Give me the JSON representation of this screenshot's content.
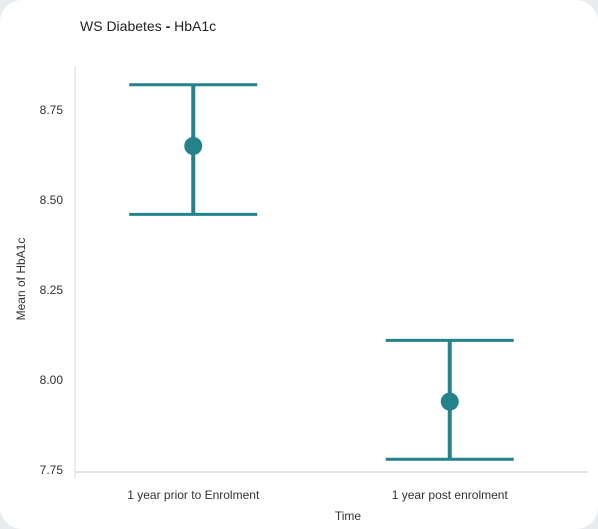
{
  "title": {
    "left": "WS Diabetes",
    "separator": "-",
    "right": "HbA1c"
  },
  "colors": {
    "series": "#24828a",
    "axis": "#d9dcdd",
    "text": "#333333"
  },
  "chart_data": {
    "type": "scatter",
    "title": "WS Diabetes - HbA1c",
    "xlabel": "Time",
    "ylabel": "Mean of HbA1c",
    "categories": [
      "1 year prior to Enrolment",
      "1 year post enrolment"
    ],
    "yticks": [
      "7.75",
      "8.00",
      "8.25",
      "8.50",
      "8.75"
    ],
    "ylim": [
      7.74,
      8.88
    ],
    "points": [
      {
        "category": "1 year prior to Enrolment",
        "mean": 8.65,
        "upper": 8.82,
        "lower": 8.46
      },
      {
        "category": "1 year post enrolment",
        "mean": 7.94,
        "upper": 8.11,
        "lower": 7.78
      }
    ],
    "error_bars": true,
    "grid": false,
    "legend": "none"
  }
}
